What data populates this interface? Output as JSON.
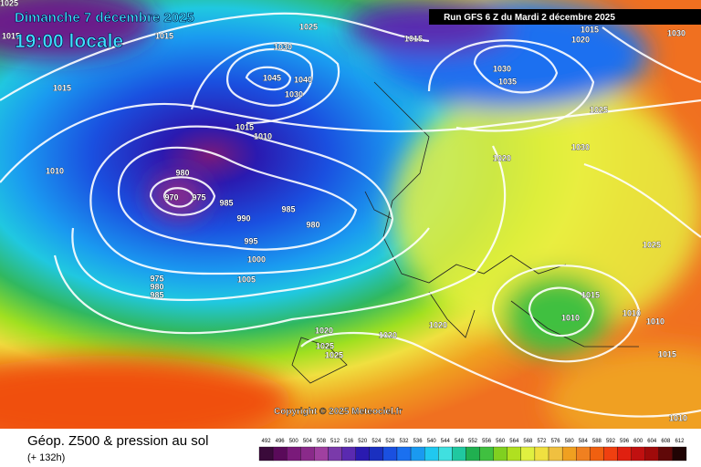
{
  "header": {
    "title": "Dimanche 7 décembre 2025",
    "subtitle": "19:00 locale",
    "run": "Run GFS 6 Z du Mardi 2 décembre 2025"
  },
  "copyright": "Copyright © 2025 Meteociel.fr",
  "footer": {
    "title": "Géop. Z500 & pression au sol",
    "lead": "(+ 132h)"
  },
  "legend": {
    "values": [
      492,
      496,
      500,
      504,
      508,
      512,
      516,
      520,
      524,
      528,
      532,
      536,
      540,
      544,
      548,
      552,
      556,
      560,
      564,
      568,
      572,
      576,
      580,
      584,
      588,
      592,
      596,
      600,
      604,
      608,
      612
    ],
    "colors": [
      "#3a0a3a",
      "#5a0a5a",
      "#7a1a7a",
      "#8a2a8a",
      "#a040a0",
      "#7a3aaa",
      "#5a2ab0",
      "#2a1ab0",
      "#1a30c0",
      "#1a50e0",
      "#1a70f0",
      "#1a9af0",
      "#20c8f0",
      "#40e0e0",
      "#20c8a0",
      "#20b050",
      "#40c040",
      "#80d020",
      "#b0e020",
      "#e0f040",
      "#f0e040",
      "#f0c040",
      "#f0a020",
      "#f08020",
      "#f06010",
      "#f04010",
      "#e02010",
      "#c01010",
      "#a00a0a",
      "#600808",
      "#200404"
    ]
  },
  "isobar_labels": [
    1015,
    1015,
    1010,
    1030,
    1045,
    1030,
    1040,
    1015,
    1010,
    980,
    970,
    975,
    985,
    990,
    985,
    980,
    995,
    1000,
    1005,
    975,
    980,
    985,
    1025,
    1015,
    1030,
    1035,
    1025,
    1030,
    1020,
    1025,
    1015,
    1010,
    1010,
    1010,
    1015,
    1020,
    1025,
    1025,
    1020,
    1020,
    1010,
    1015,
    1020,
    1030,
    1025,
    1015
  ]
}
